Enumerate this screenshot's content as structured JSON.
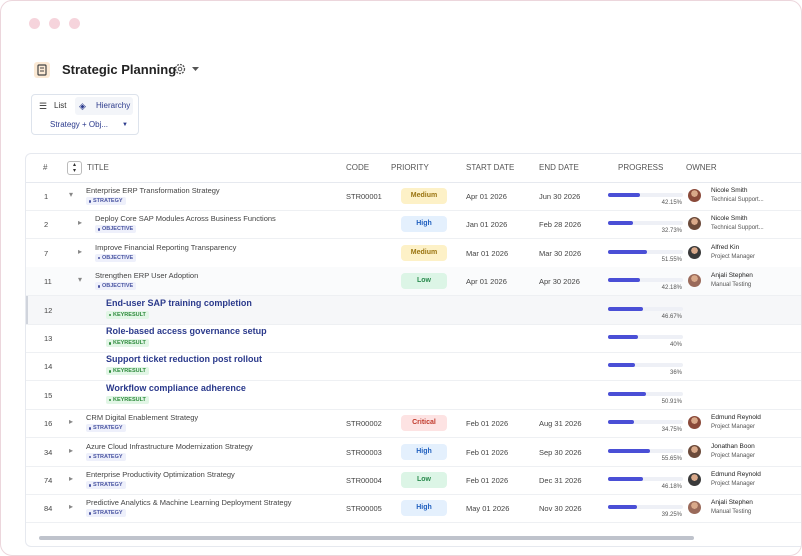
{
  "header": {
    "title": "Strategic Planning"
  },
  "views": {
    "list": "List",
    "hierarchy": "Hierarchy",
    "filter": "Strategy + Obj..."
  },
  "table": {
    "columns": [
      "#",
      "TITLE",
      "CODE",
      "PRIORITY",
      "START DATE",
      "END DATE",
      "PROGRESS",
      "OWNER"
    ],
    "rows": [
      {
        "id": 1,
        "title": "Enterprise ERP Transformation Strategy",
        "tag": "STRATEGY",
        "expanded": true,
        "code": "STR00001",
        "priority": "Medium",
        "start": "Apr 01 2026",
        "end": "Jun 30 2026",
        "progress": 42.15,
        "progress_label": "42.15%",
        "owner": "Nicole Smith",
        "role": "Technical Support..."
      },
      {
        "id": 2,
        "title": "Deploy Core SAP Modules Across Business Functions",
        "tag": "OBJECTIVE",
        "expanded": false,
        "priority": "High",
        "start": "Jan 01 2026",
        "end": "Feb 28 2026",
        "progress": 32.73,
        "progress_label": "32.73%",
        "owner": "Nicole Smith",
        "role": "Technical Support..."
      },
      {
        "id": 7,
        "title": "Improve Financial Reporting Transparency",
        "tag": "OBJECTIVE",
        "expanded": false,
        "priority": "Medium",
        "start": "Mar 01 2026",
        "end": "Mar 30 2026",
        "progress": 51.55,
        "progress_label": "51.55%",
        "owner": "Alfred Kin",
        "role": "Project Manager"
      },
      {
        "id": 11,
        "title": "Strengthen ERP User Adoption",
        "tag": "OBJECTIVE",
        "expanded": true,
        "priority": "Low",
        "start": "Apr 01 2026",
        "end": "Apr 30 2026",
        "progress": 42.18,
        "progress_label": "42.18%",
        "owner": "Anjali Stephen",
        "role": "Manual Testing"
      },
      {
        "id": 12,
        "title": "End-user SAP training completion",
        "tag": "KEYRESULT",
        "progress": 46.67,
        "progress_label": "46.67%"
      },
      {
        "id": 13,
        "title": "Role-based access governance setup",
        "tag": "KEYRESULT",
        "progress": 40,
        "progress_label": "40%"
      },
      {
        "id": 14,
        "title": "Support ticket reduction post rollout",
        "tag": "KEYRESULT",
        "progress": 36,
        "progress_label": "36%"
      },
      {
        "id": 15,
        "title": "Workflow compliance adherence",
        "tag": "KEYRESULT",
        "progress": 50.91,
        "progress_label": "50.91%"
      },
      {
        "id": 16,
        "title": "CRM Digital Enablement Strategy",
        "tag": "STRATEGY",
        "expanded": false,
        "code": "STR00002",
        "priority": "Critical",
        "start": "Feb 01 2026",
        "end": "Aug 31 2026",
        "progress": 34.75,
        "progress_label": "34.75%",
        "owner": "Edmund Reynold",
        "role": "Project Manager"
      },
      {
        "id": 34,
        "title": "Azure Cloud Infrastructure Modernization Strategy",
        "tag": "STRATEGY",
        "expanded": false,
        "code": "STR00003",
        "priority": "High",
        "start": "Feb 01 2026",
        "end": "Sep 30 2026",
        "progress": 55.65,
        "progress_label": "55.65%",
        "owner": "Jonathan Boon",
        "role": "Project Manager"
      },
      {
        "id": 74,
        "title": "Enterprise Productivity Optimization Strategy",
        "tag": "STRATEGY",
        "expanded": false,
        "code": "STR00004",
        "priority": "Low",
        "start": "Feb 01 2026",
        "end": "Dec 31 2026",
        "progress": 46.18,
        "progress_label": "46.18%",
        "owner": "Edmund Reynold",
        "role": "Project Manager"
      },
      {
        "id": 84,
        "title": "Predictive Analytics & Machine Learning Deployment Strategy",
        "tag": "STRATEGY",
        "expanded": false,
        "code": "STR00005",
        "priority": "High",
        "start": "May 01 2026",
        "end": "Nov 30 2026",
        "progress": 39.25,
        "progress_label": "39.25%",
        "owner": "Anjali Stephen",
        "role": "Manual Testing"
      }
    ]
  }
}
